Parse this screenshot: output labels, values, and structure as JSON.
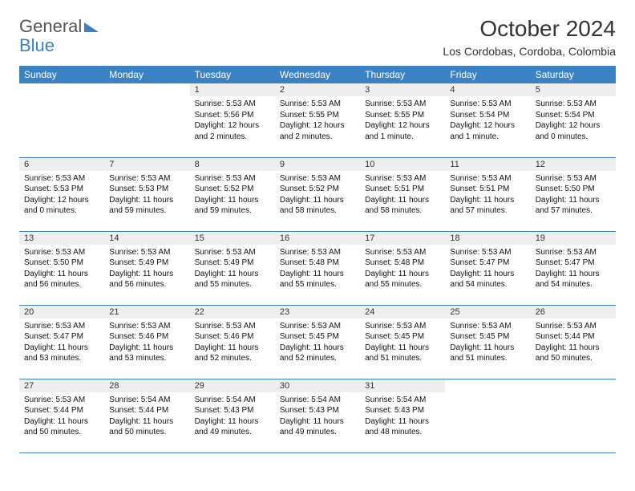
{
  "logo": {
    "part1": "General",
    "part2": "Blue"
  },
  "title": "October 2024",
  "location": "Los Cordobas, Cordoba, Colombia",
  "colors": {
    "header_bg": "#3a82c4",
    "header_text": "#ffffff",
    "daynum_bg": "#eeeeee",
    "border": "#3a82c4",
    "body_text": "#111111"
  },
  "daysOfWeek": [
    "Sunday",
    "Monday",
    "Tuesday",
    "Wednesday",
    "Thursday",
    "Friday",
    "Saturday"
  ],
  "weeks": [
    [
      {
        "blank": true
      },
      {
        "blank": true
      },
      {
        "n": "1",
        "sr": "Sunrise: 5:53 AM",
        "ss": "Sunset: 5:56 PM",
        "dl": "Daylight: 12 hours and 2 minutes."
      },
      {
        "n": "2",
        "sr": "Sunrise: 5:53 AM",
        "ss": "Sunset: 5:55 PM",
        "dl": "Daylight: 12 hours and 2 minutes."
      },
      {
        "n": "3",
        "sr": "Sunrise: 5:53 AM",
        "ss": "Sunset: 5:55 PM",
        "dl": "Daylight: 12 hours and 1 minute."
      },
      {
        "n": "4",
        "sr": "Sunrise: 5:53 AM",
        "ss": "Sunset: 5:54 PM",
        "dl": "Daylight: 12 hours and 1 minute."
      },
      {
        "n": "5",
        "sr": "Sunrise: 5:53 AM",
        "ss": "Sunset: 5:54 PM",
        "dl": "Daylight: 12 hours and 0 minutes."
      }
    ],
    [
      {
        "n": "6",
        "sr": "Sunrise: 5:53 AM",
        "ss": "Sunset: 5:53 PM",
        "dl": "Daylight: 12 hours and 0 minutes."
      },
      {
        "n": "7",
        "sr": "Sunrise: 5:53 AM",
        "ss": "Sunset: 5:53 PM",
        "dl": "Daylight: 11 hours and 59 minutes."
      },
      {
        "n": "8",
        "sr": "Sunrise: 5:53 AM",
        "ss": "Sunset: 5:52 PM",
        "dl": "Daylight: 11 hours and 59 minutes."
      },
      {
        "n": "9",
        "sr": "Sunrise: 5:53 AM",
        "ss": "Sunset: 5:52 PM",
        "dl": "Daylight: 11 hours and 58 minutes."
      },
      {
        "n": "10",
        "sr": "Sunrise: 5:53 AM",
        "ss": "Sunset: 5:51 PM",
        "dl": "Daylight: 11 hours and 58 minutes."
      },
      {
        "n": "11",
        "sr": "Sunrise: 5:53 AM",
        "ss": "Sunset: 5:51 PM",
        "dl": "Daylight: 11 hours and 57 minutes."
      },
      {
        "n": "12",
        "sr": "Sunrise: 5:53 AM",
        "ss": "Sunset: 5:50 PM",
        "dl": "Daylight: 11 hours and 57 minutes."
      }
    ],
    [
      {
        "n": "13",
        "sr": "Sunrise: 5:53 AM",
        "ss": "Sunset: 5:50 PM",
        "dl": "Daylight: 11 hours and 56 minutes."
      },
      {
        "n": "14",
        "sr": "Sunrise: 5:53 AM",
        "ss": "Sunset: 5:49 PM",
        "dl": "Daylight: 11 hours and 56 minutes."
      },
      {
        "n": "15",
        "sr": "Sunrise: 5:53 AM",
        "ss": "Sunset: 5:49 PM",
        "dl": "Daylight: 11 hours and 55 minutes."
      },
      {
        "n": "16",
        "sr": "Sunrise: 5:53 AM",
        "ss": "Sunset: 5:48 PM",
        "dl": "Daylight: 11 hours and 55 minutes."
      },
      {
        "n": "17",
        "sr": "Sunrise: 5:53 AM",
        "ss": "Sunset: 5:48 PM",
        "dl": "Daylight: 11 hours and 55 minutes."
      },
      {
        "n": "18",
        "sr": "Sunrise: 5:53 AM",
        "ss": "Sunset: 5:47 PM",
        "dl": "Daylight: 11 hours and 54 minutes."
      },
      {
        "n": "19",
        "sr": "Sunrise: 5:53 AM",
        "ss": "Sunset: 5:47 PM",
        "dl": "Daylight: 11 hours and 54 minutes."
      }
    ],
    [
      {
        "n": "20",
        "sr": "Sunrise: 5:53 AM",
        "ss": "Sunset: 5:47 PM",
        "dl": "Daylight: 11 hours and 53 minutes."
      },
      {
        "n": "21",
        "sr": "Sunrise: 5:53 AM",
        "ss": "Sunset: 5:46 PM",
        "dl": "Daylight: 11 hours and 53 minutes."
      },
      {
        "n": "22",
        "sr": "Sunrise: 5:53 AM",
        "ss": "Sunset: 5:46 PM",
        "dl": "Daylight: 11 hours and 52 minutes."
      },
      {
        "n": "23",
        "sr": "Sunrise: 5:53 AM",
        "ss": "Sunset: 5:45 PM",
        "dl": "Daylight: 11 hours and 52 minutes."
      },
      {
        "n": "24",
        "sr": "Sunrise: 5:53 AM",
        "ss": "Sunset: 5:45 PM",
        "dl": "Daylight: 11 hours and 51 minutes."
      },
      {
        "n": "25",
        "sr": "Sunrise: 5:53 AM",
        "ss": "Sunset: 5:45 PM",
        "dl": "Daylight: 11 hours and 51 minutes."
      },
      {
        "n": "26",
        "sr": "Sunrise: 5:53 AM",
        "ss": "Sunset: 5:44 PM",
        "dl": "Daylight: 11 hours and 50 minutes."
      }
    ],
    [
      {
        "n": "27",
        "sr": "Sunrise: 5:53 AM",
        "ss": "Sunset: 5:44 PM",
        "dl": "Daylight: 11 hours and 50 minutes."
      },
      {
        "n": "28",
        "sr": "Sunrise: 5:54 AM",
        "ss": "Sunset: 5:44 PM",
        "dl": "Daylight: 11 hours and 50 minutes."
      },
      {
        "n": "29",
        "sr": "Sunrise: 5:54 AM",
        "ss": "Sunset: 5:43 PM",
        "dl": "Daylight: 11 hours and 49 minutes."
      },
      {
        "n": "30",
        "sr": "Sunrise: 5:54 AM",
        "ss": "Sunset: 5:43 PM",
        "dl": "Daylight: 11 hours and 49 minutes."
      },
      {
        "n": "31",
        "sr": "Sunrise: 5:54 AM",
        "ss": "Sunset: 5:43 PM",
        "dl": "Daylight: 11 hours and 48 minutes."
      },
      {
        "blank": true
      },
      {
        "blank": true
      }
    ]
  ]
}
